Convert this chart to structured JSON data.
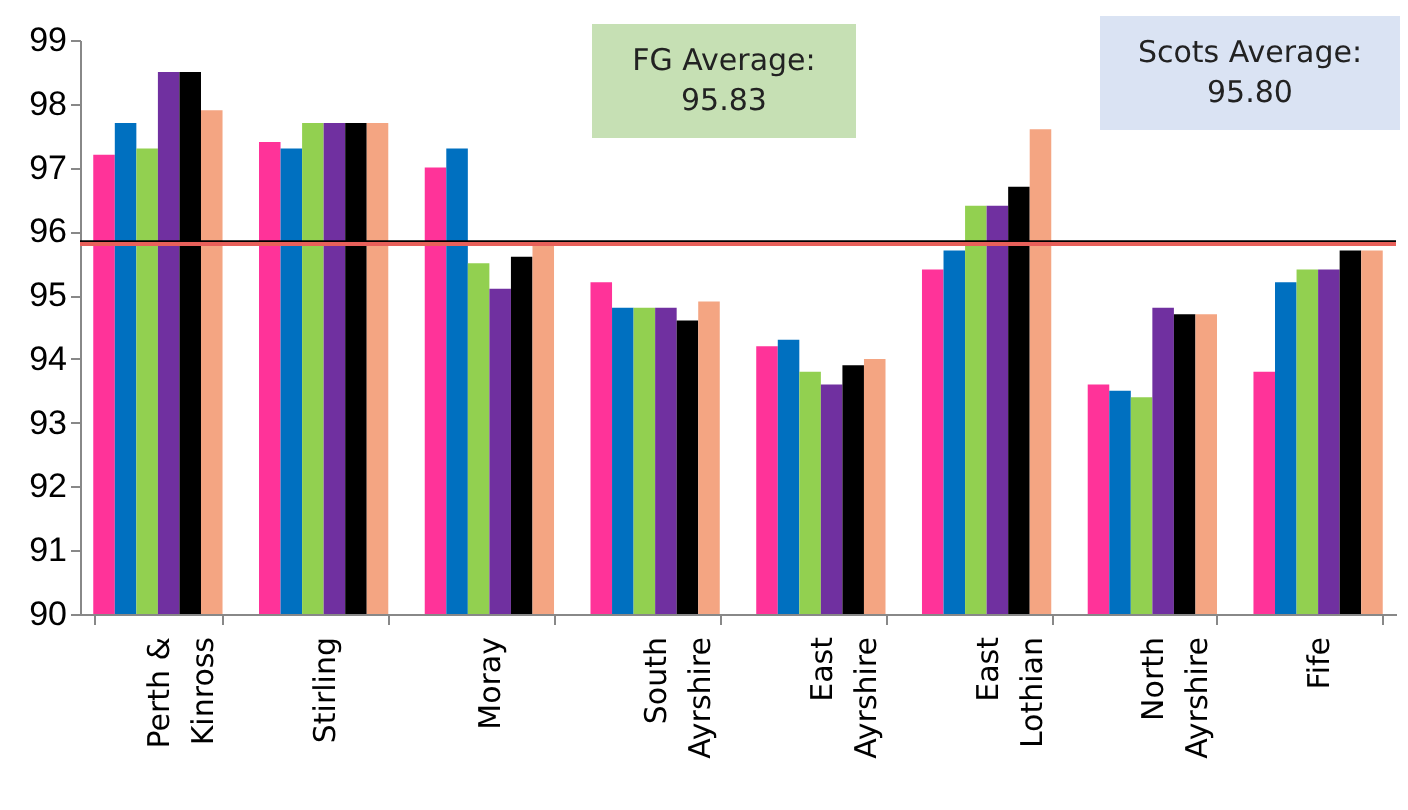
{
  "chart_data": {
    "type": "bar",
    "categories": [
      "Perth & Kinross",
      "Stirling",
      "Moray",
      "South Ayrshire",
      "East Ayrshire",
      "East Lothian",
      "North Ayrshire",
      "Fife"
    ],
    "series": [
      {
        "color": "#ff3399",
        "values": [
          97.2,
          97.4,
          97.0,
          95.2,
          94.2,
          95.4,
          93.6,
          93.8
        ]
      },
      {
        "color": "#0070c0",
        "values": [
          97.7,
          97.3,
          97.3,
          94.8,
          94.3,
          95.7,
          93.5,
          95.2
        ]
      },
      {
        "color": "#92d050",
        "values": [
          97.3,
          97.7,
          95.5,
          94.8,
          93.8,
          96.4,
          93.4,
          95.4
        ]
      },
      {
        "color": "#7030a0",
        "values": [
          98.5,
          97.7,
          95.1,
          94.8,
          93.6,
          96.4,
          94.8,
          95.4
        ]
      },
      {
        "color": "#000000",
        "values": [
          98.5,
          97.7,
          95.6,
          94.6,
          93.9,
          96.7,
          94.7,
          95.7
        ]
      },
      {
        "color": "#f4a582",
        "values": [
          97.9,
          97.7,
          95.8,
          94.9,
          94.0,
          97.6,
          94.7,
          95.7
        ]
      }
    ],
    "ylim": [
      90,
      99
    ],
    "yticks": [
      90,
      91,
      92,
      93,
      94,
      95,
      96,
      97,
      98,
      99
    ],
    "grid": false,
    "legend": false,
    "ref_lines": [
      {
        "axis": "y",
        "value": 95.83,
        "color": "#000000"
      },
      {
        "axis": "y",
        "value": 95.8,
        "color": "#e8605a"
      }
    ],
    "annotations": [
      "FG Average:\n95.83",
      "Scots Average:\n95.80"
    ]
  }
}
